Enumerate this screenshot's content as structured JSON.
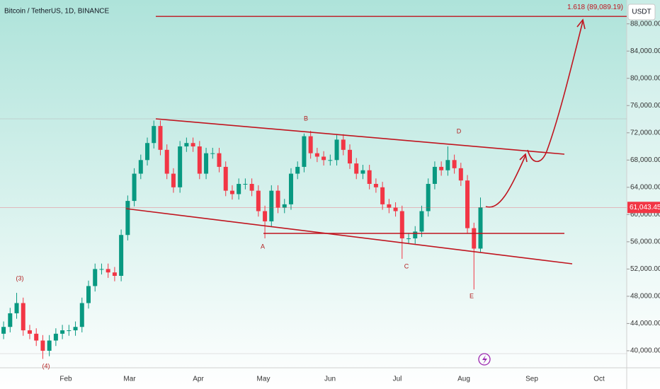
{
  "chart_data": {
    "type": "candlestick",
    "title": "Bitcoin / TetherUS, 1D, BINANCE",
    "currency": "USDT",
    "months": [
      "Feb",
      "Mar",
      "Apr",
      "May",
      "Jun",
      "Jul",
      "Aug",
      "Sep",
      "Oct"
    ],
    "ylim": [
      37500,
      91500
    ],
    "yticks": [
      {
        "value": 40000,
        "label": "40,000.00"
      },
      {
        "value": 44000,
        "label": "44,000.00"
      },
      {
        "value": 48000,
        "label": "48,000.00"
      },
      {
        "value": 52000,
        "label": "52,000.00"
      },
      {
        "value": 56000,
        "label": "56,000.00"
      },
      {
        "value": 60000,
        "label": "60,000.00"
      },
      {
        "value": 64000,
        "label": "64,000.00"
      },
      {
        "value": 68000,
        "label": "68,000.00"
      },
      {
        "value": 72000,
        "label": "72,000.00"
      },
      {
        "value": 76000,
        "label": "76,000.00"
      },
      {
        "value": 80000,
        "label": "80,000.00"
      },
      {
        "value": 84000,
        "label": "84,000.00"
      },
      {
        "value": 88000,
        "label": "88,000.00"
      }
    ],
    "last_price": {
      "value": 61043.45,
      "label": "61,043.45"
    },
    "target": {
      "value": 89089.19,
      "label": "1.618 (89,089.19)"
    },
    "up_color": "#089981",
    "down_color": "#f23645",
    "annotations": [
      "(3)",
      "(4)",
      "A",
      "B",
      "C",
      "D",
      "E"
    ],
    "open": [
      42500,
      43500,
      45500,
      47000,
      43000,
      42500,
      41500,
      40000,
      41500,
      42500,
      43000,
      43000,
      43500,
      47000,
      49500,
      52000,
      52000,
      51500,
      51000,
      57000,
      62000,
      66000,
      68000,
      70500,
      73000,
      69500,
      66000,
      64000,
      70000,
      70500,
      70000,
      66000,
      69000,
      69000,
      67000,
      63500,
      63000,
      64500,
      64500,
      63500,
      60500,
      59000,
      63500,
      61000,
      61500,
      66000,
      67000,
      71500,
      69000,
      68500,
      68000,
      68000,
      71000,
      69500,
      67500,
      66000,
      66500,
      64500,
      64000,
      61500,
      61000,
      60500,
      56500,
      56500,
      57500,
      60500,
      64500,
      67000,
      66500,
      68000,
      66800,
      65000,
      58000,
      55000
    ],
    "high": [
      44300,
      46300,
      48500,
      47800,
      43800,
      43300,
      42300,
      42300,
      43300,
      43800,
      43800,
      44300,
      47800,
      50300,
      52800,
      52800,
      52800,
      52300,
      57800,
      62800,
      66800,
      68800,
      71300,
      73800,
      73800,
      70300,
      66800,
      70800,
      71300,
      71300,
      70800,
      69800,
      69800,
      69800,
      67800,
      64300,
      65300,
      65300,
      65300,
      64300,
      61300,
      64300,
      64300,
      62300,
      66800,
      67800,
      71900,
      72300,
      69800,
      69300,
      68800,
      71800,
      71800,
      70300,
      68300,
      67300,
      67300,
      65300,
      64800,
      62300,
      61800,
      61300,
      57300,
      58300,
      61300,
      65300,
      67800,
      67800,
      70000,
      68800,
      67600,
      65800,
      58800,
      62500
    ],
    "low": [
      41700,
      42700,
      44700,
      42200,
      41700,
      40700,
      38800,
      39200,
      40700,
      41700,
      42200,
      42200,
      42700,
      46200,
      48700,
      51200,
      50700,
      50200,
      50200,
      56200,
      61200,
      65200,
      67200,
      69700,
      68700,
      65200,
      63200,
      63200,
      69200,
      69200,
      65200,
      65200,
      68200,
      66200,
      62700,
      62200,
      62200,
      63700,
      62700,
      59700,
      56500,
      58200,
      60200,
      60200,
      60700,
      65200,
      66200,
      68200,
      67700,
      67200,
      67200,
      67200,
      68700,
      66700,
      65200,
      65200,
      63700,
      63200,
      60700,
      60200,
      59700,
      53500,
      55700,
      55700,
      56700,
      59700,
      63700,
      65700,
      65700,
      66000,
      64200,
      57200,
      49000,
      54500
    ],
    "close": [
      43500,
      45500,
      47000,
      43000,
      42500,
      41500,
      40000,
      41500,
      42500,
      43000,
      43000,
      43500,
      47000,
      49500,
      52000,
      52000,
      51500,
      51000,
      57000,
      62000,
      66000,
      68000,
      70500,
      73000,
      69500,
      66000,
      64000,
      70000,
      70500,
      70000,
      66000,
      69000,
      69000,
      67000,
      63500,
      63000,
      64500,
      64500,
      63500,
      60500,
      59000,
      63500,
      61000,
      61500,
      66000,
      67000,
      71500,
      69000,
      68500,
      68000,
      68000,
      71000,
      69500,
      67500,
      66000,
      66500,
      64500,
      64000,
      61500,
      61000,
      60500,
      56500,
      56500,
      57500,
      60500,
      64500,
      67000,
      66500,
      68000,
      66800,
      65000,
      58000,
      55000,
      61043.45
    ]
  }
}
